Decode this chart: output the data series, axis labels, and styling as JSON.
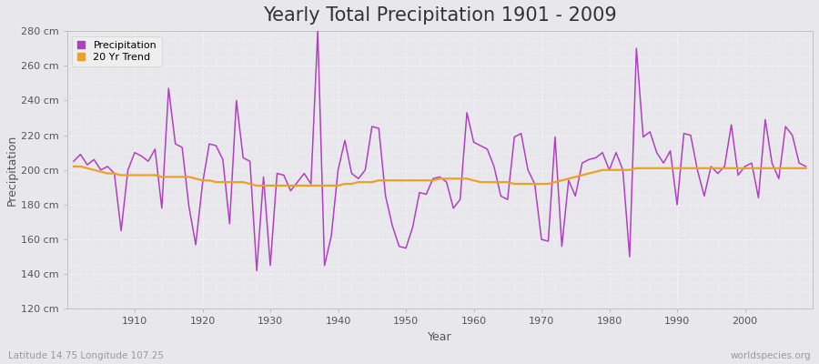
{
  "title": "Yearly Total Precipitation 1901 - 2009",
  "xlabel": "Year",
  "ylabel": "Precipitation",
  "years": [
    1901,
    1902,
    1903,
    1904,
    1905,
    1906,
    1907,
    1908,
    1909,
    1910,
    1911,
    1912,
    1913,
    1914,
    1915,
    1916,
    1917,
    1918,
    1919,
    1920,
    1921,
    1922,
    1923,
    1924,
    1925,
    1926,
    1927,
    1928,
    1929,
    1930,
    1931,
    1932,
    1933,
    1934,
    1935,
    1936,
    1937,
    1938,
    1939,
    1940,
    1941,
    1942,
    1943,
    1944,
    1945,
    1946,
    1947,
    1948,
    1949,
    1950,
    1951,
    1952,
    1953,
    1954,
    1955,
    1956,
    1957,
    1958,
    1959,
    1960,
    1961,
    1962,
    1963,
    1964,
    1965,
    1966,
    1967,
    1968,
    1969,
    1970,
    1971,
    1972,
    1973,
    1974,
    1975,
    1976,
    1977,
    1978,
    1979,
    1980,
    1981,
    1982,
    1983,
    1984,
    1985,
    1986,
    1987,
    1988,
    1989,
    1990,
    1991,
    1992,
    1993,
    1994,
    1995,
    1996,
    1997,
    1998,
    1999,
    2000,
    2001,
    2002,
    2003,
    2004,
    2005,
    2006,
    2007,
    2008,
    2009
  ],
  "precipitation": [
    205,
    209,
    203,
    206,
    200,
    202,
    198,
    165,
    200,
    210,
    208,
    205,
    212,
    178,
    247,
    215,
    213,
    179,
    157,
    192,
    215,
    214,
    206,
    169,
    240,
    207,
    205,
    142,
    196,
    145,
    198,
    197,
    188,
    193,
    198,
    192,
    280,
    145,
    162,
    200,
    217,
    198,
    195,
    200,
    225,
    224,
    185,
    168,
    156,
    155,
    167,
    187,
    186,
    195,
    196,
    193,
    178,
    183,
    233,
    216,
    214,
    212,
    202,
    185,
    183,
    219,
    221,
    200,
    192,
    160,
    159,
    219,
    156,
    194,
    185,
    204,
    206,
    207,
    210,
    200,
    210,
    200,
    150,
    270,
    219,
    222,
    210,
    204,
    211,
    180,
    221,
    220,
    200,
    185,
    202,
    198,
    202,
    226,
    197,
    202,
    204,
    184,
    229,
    204,
    195,
    225,
    220,
    204,
    202
  ],
  "trend": [
    202,
    202,
    201,
    200,
    199,
    198,
    198,
    197,
    197,
    197,
    197,
    197,
    197,
    196,
    196,
    196,
    196,
    196,
    195,
    194,
    194,
    193,
    193,
    193,
    193,
    193,
    192,
    191,
    191,
    191,
    191,
    191,
    191,
    191,
    191,
    191,
    191,
    191,
    191,
    191,
    192,
    192,
    193,
    193,
    193,
    194,
    194,
    194,
    194,
    194,
    194,
    194,
    194,
    194,
    195,
    195,
    195,
    195,
    195,
    194,
    193,
    193,
    193,
    193,
    193,
    192,
    192,
    192,
    192,
    192,
    192,
    193,
    194,
    195,
    196,
    197,
    198,
    199,
    200,
    200,
    200,
    200,
    200,
    201,
    201,
    201,
    201,
    201,
    201,
    201,
    201,
    201,
    201,
    201,
    201,
    201,
    201,
    201,
    201,
    201,
    201,
    201,
    201,
    201,
    201,
    201,
    201,
    201,
    201
  ],
  "ylim": [
    120,
    280
  ],
  "yticks": [
    120,
    140,
    160,
    180,
    200,
    220,
    240,
    260,
    280
  ],
  "xticks": [
    1910,
    1920,
    1930,
    1940,
    1950,
    1960,
    1970,
    1980,
    1990,
    2000
  ],
  "xlim": [
    1900,
    2010
  ],
  "precip_color": "#b040c0",
  "trend_color": "#f0a020",
  "bg_color": "#e8e8ec",
  "plot_bg_color": "#e8e8ec",
  "grid_color": "#ffffff",
  "footnote_left": "Latitude 14.75 Longitude 107.25",
  "footnote_right": "worldspecies.org",
  "title_fontsize": 15,
  "axis_label_fontsize": 9,
  "tick_fontsize": 8,
  "legend_fontsize": 8,
  "footnote_fontsize": 7.5,
  "footnote_color": "#999999"
}
